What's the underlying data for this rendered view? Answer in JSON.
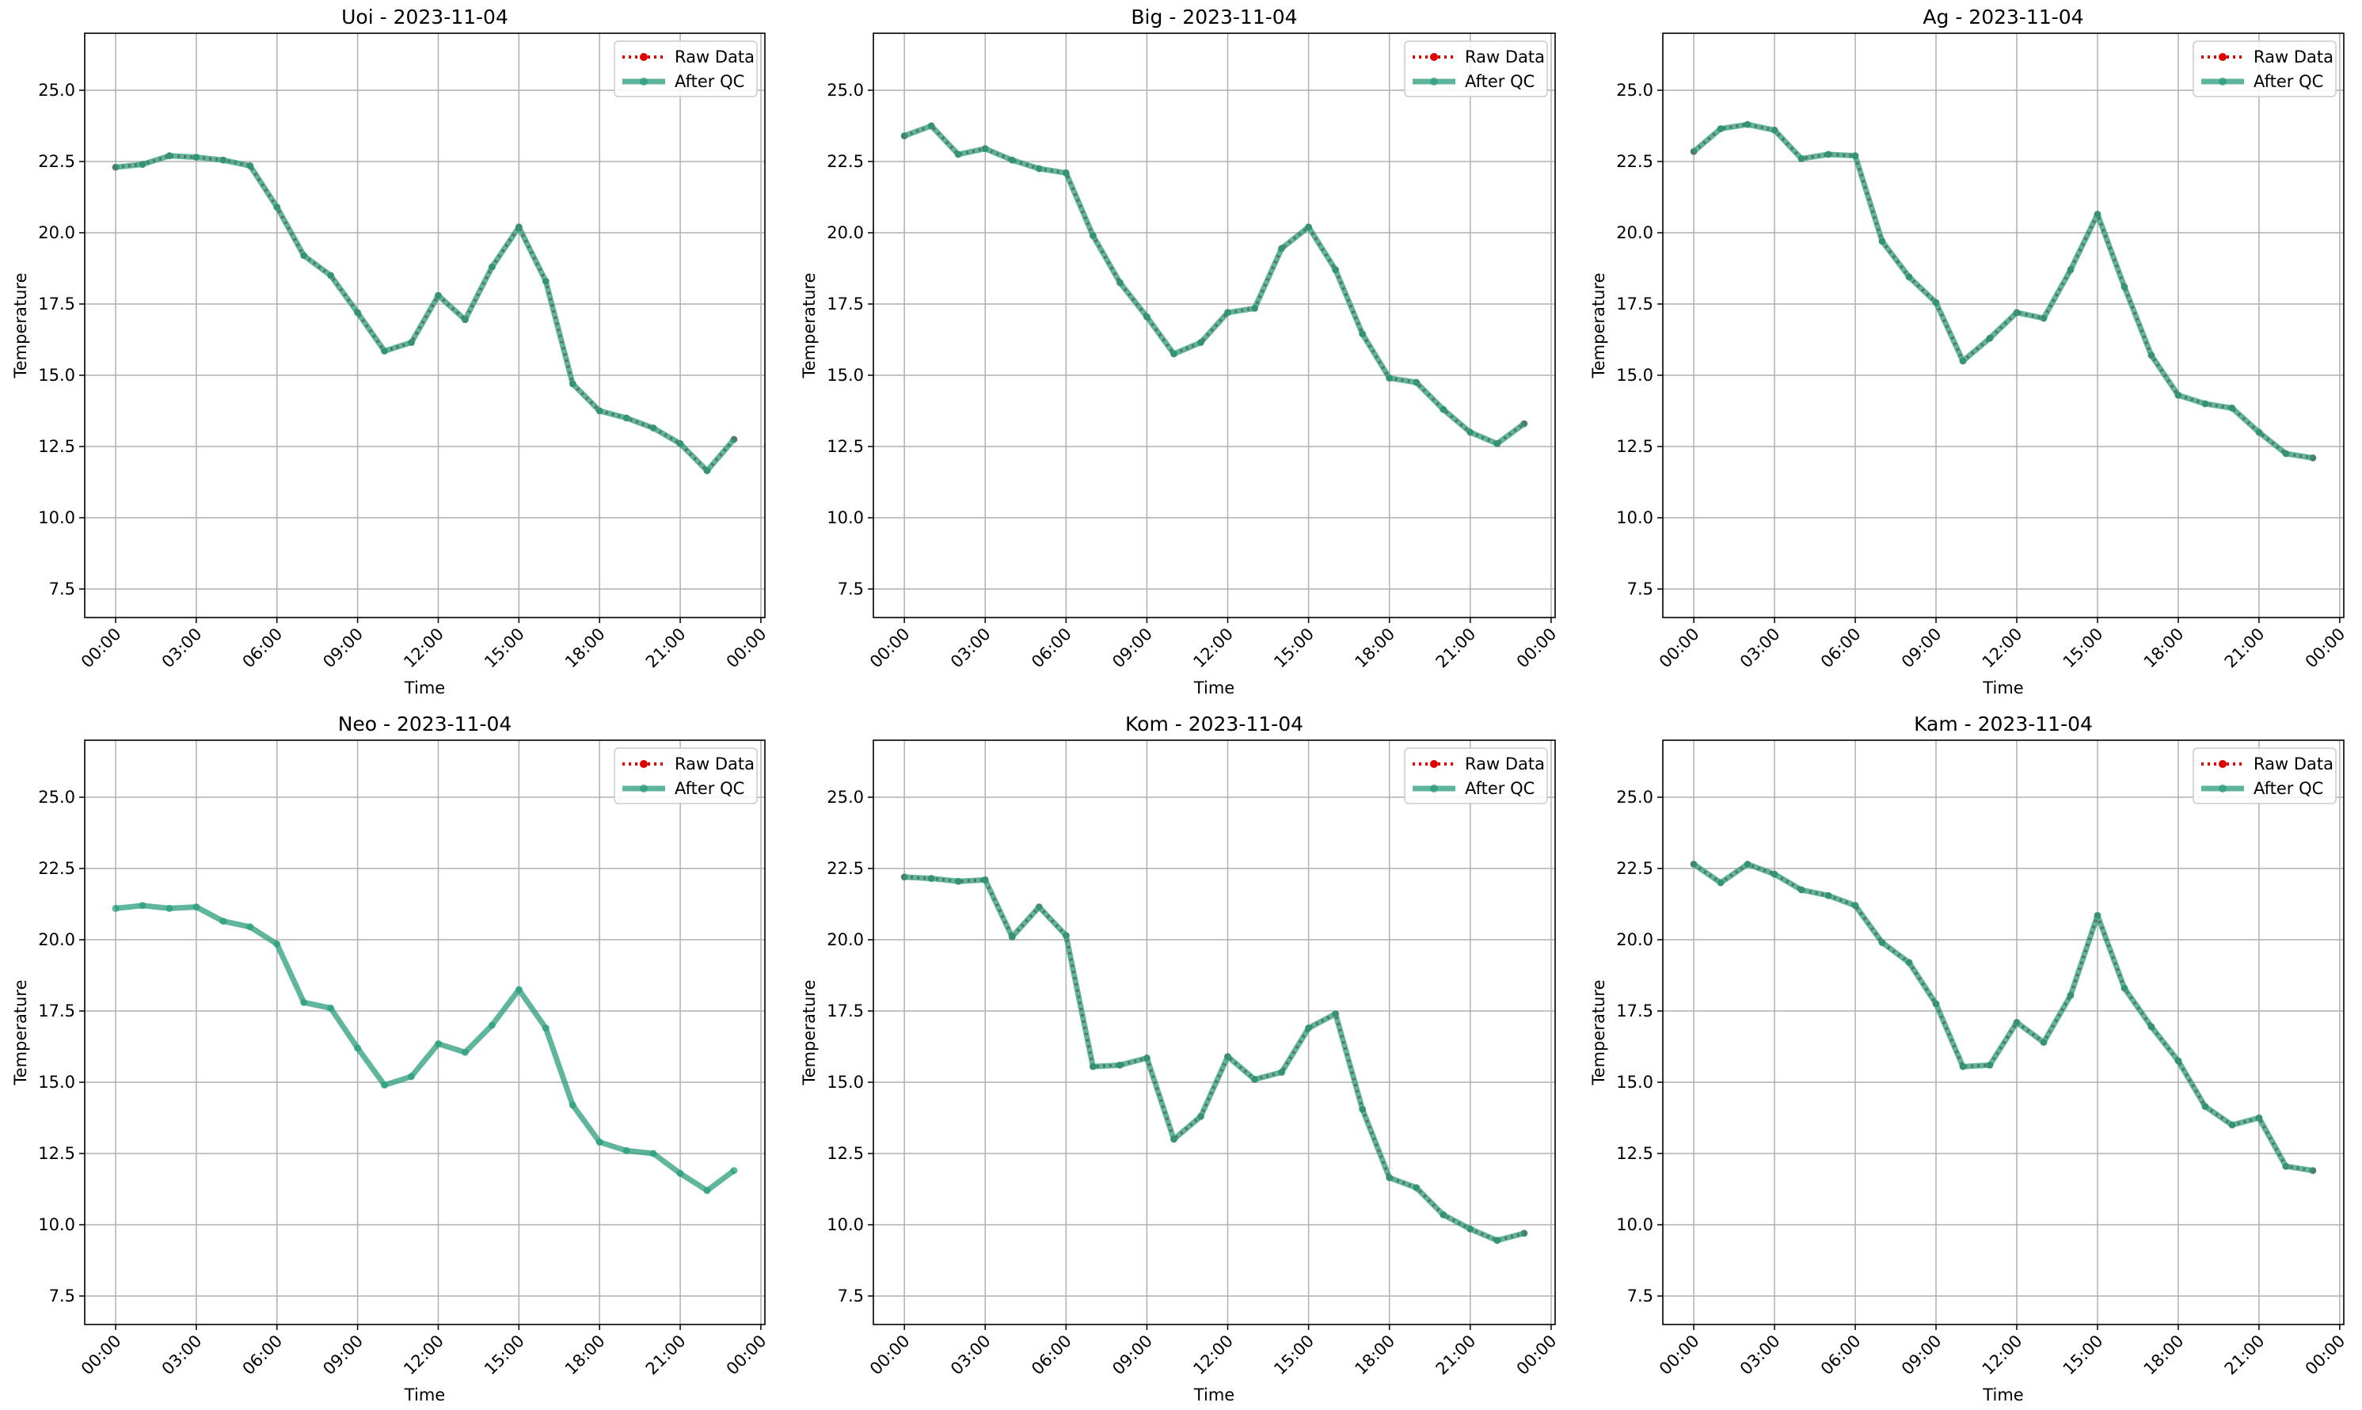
{
  "chart_data": [
    {
      "type": "line",
      "title": "Uoi - 2023-11-04",
      "xlabel": "Time",
      "ylabel": "Temperature",
      "x": [
        0,
        1,
        2,
        3,
        4,
        5,
        6,
        7,
        8,
        9,
        10,
        11,
        12,
        13,
        14,
        15,
        16,
        17,
        18,
        19,
        20,
        21,
        22,
        23
      ],
      "series": [
        {
          "name": "Raw Data",
          "color": "#e00000",
          "values": [
            22.3,
            22.4,
            22.7,
            22.65,
            22.55,
            22.35,
            20.9,
            19.2,
            18.5,
            17.2,
            15.85,
            16.15,
            17.8,
            16.95,
            18.8,
            20.2,
            18.3,
            14.7,
            13.75,
            13.5,
            13.15,
            12.6,
            11.65,
            12.75
          ]
        },
        {
          "name": "After QC",
          "color": "#2a9d7c",
          "values": [
            22.3,
            22.4,
            22.7,
            22.65,
            22.55,
            22.35,
            20.9,
            19.2,
            18.5,
            17.2,
            15.85,
            16.15,
            17.8,
            16.95,
            18.8,
            20.2,
            18.3,
            14.7,
            13.75,
            13.5,
            13.15,
            12.6,
            11.65,
            12.75
          ]
        }
      ],
      "xlim": [
        -1.15,
        24.15
      ],
      "xticks": [
        {
          "value": 0,
          "label": "00:00"
        },
        {
          "value": 3,
          "label": "03:00"
        },
        {
          "value": 6,
          "label": "06:00"
        },
        {
          "value": 9,
          "label": "09:00"
        },
        {
          "value": 12,
          "label": "12:00"
        },
        {
          "value": 15,
          "label": "15:00"
        },
        {
          "value": 18,
          "label": "18:00"
        },
        {
          "value": 21,
          "label": "21:00"
        },
        {
          "value": 24,
          "label": "00:00"
        }
      ],
      "ylim": [
        6.5,
        27
      ],
      "yticks": [
        7.5,
        {
          "value": 10,
          "label": "10.0"
        },
        12.5,
        {
          "value": 15,
          "label": "15.0"
        },
        17.5,
        {
          "value": 20,
          "label": "20.0"
        },
        22.5,
        {
          "value": 25,
          "label": "25.0"
        }
      ],
      "grid": true,
      "legend": "upper right"
    },
    {
      "type": "line",
      "title": "Big - 2023-11-04",
      "xlabel": "Time",
      "ylabel": "Temperature",
      "x": [
        0,
        1,
        2,
        3,
        4,
        5,
        6,
        7,
        8,
        9,
        10,
        11,
        12,
        13,
        14,
        15,
        16,
        17,
        18,
        19,
        20,
        21,
        22,
        23
      ],
      "series": [
        {
          "name": "Raw Data",
          "color": "#e00000",
          "values": [
            23.4,
            23.75,
            22.75,
            22.95,
            22.55,
            22.25,
            22.1,
            19.9,
            18.25,
            17.05,
            15.75,
            16.15,
            17.2,
            17.35,
            19.45,
            20.2,
            18.7,
            16.45,
            14.9,
            14.75,
            13.8,
            13.0,
            12.6,
            13.3
          ]
        },
        {
          "name": "After QC",
          "color": "#2a9d7c",
          "values": [
            23.4,
            23.75,
            22.75,
            22.95,
            22.55,
            22.25,
            22.1,
            19.9,
            18.25,
            17.05,
            15.75,
            16.15,
            17.2,
            17.35,
            19.45,
            20.2,
            18.7,
            16.45,
            14.9,
            14.75,
            13.8,
            13.0,
            12.6,
            13.3
          ]
        }
      ],
      "xlim": [
        -1.15,
        24.15
      ],
      "xticks": [
        {
          "value": 0,
          "label": "00:00"
        },
        {
          "value": 3,
          "label": "03:00"
        },
        {
          "value": 6,
          "label": "06:00"
        },
        {
          "value": 9,
          "label": "09:00"
        },
        {
          "value": 12,
          "label": "12:00"
        },
        {
          "value": 15,
          "label": "15:00"
        },
        {
          "value": 18,
          "label": "18:00"
        },
        {
          "value": 21,
          "label": "21:00"
        },
        {
          "value": 24,
          "label": "00:00"
        }
      ],
      "ylim": [
        6.5,
        27
      ],
      "yticks": [
        7.5,
        {
          "value": 10,
          "label": "10.0"
        },
        12.5,
        {
          "value": 15,
          "label": "15.0"
        },
        17.5,
        {
          "value": 20,
          "label": "20.0"
        },
        22.5,
        {
          "value": 25,
          "label": "25.0"
        }
      ],
      "grid": true,
      "legend": "upper right"
    },
    {
      "type": "line",
      "title": "Ag - 2023-11-04",
      "xlabel": "Time",
      "ylabel": "Temperature",
      "x": [
        0,
        1,
        2,
        3,
        4,
        5,
        6,
        7,
        8,
        9,
        10,
        11,
        12,
        13,
        14,
        15,
        16,
        17,
        18,
        19,
        20,
        21,
        22,
        23
      ],
      "series": [
        {
          "name": "Raw Data",
          "color": "#e00000",
          "values": [
            22.85,
            23.65,
            23.8,
            23.6,
            22.6,
            22.75,
            22.7,
            19.7,
            18.45,
            17.55,
            15.5,
            16.3,
            17.2,
            17.0,
            18.7,
            20.65,
            18.1,
            15.7,
            14.3,
            14.0,
            13.85,
            13.0,
            12.25,
            12.1
          ]
        },
        {
          "name": "After QC",
          "color": "#2a9d7c",
          "values": [
            22.85,
            23.65,
            23.8,
            23.6,
            22.6,
            22.75,
            22.7,
            19.7,
            18.45,
            17.55,
            15.5,
            16.3,
            17.2,
            17.0,
            18.7,
            20.65,
            18.1,
            15.7,
            14.3,
            14.0,
            13.85,
            13.0,
            12.25,
            12.1
          ]
        }
      ],
      "xlim": [
        -1.15,
        24.15
      ],
      "xticks": [
        {
          "value": 0,
          "label": "00:00"
        },
        {
          "value": 3,
          "label": "03:00"
        },
        {
          "value": 6,
          "label": "06:00"
        },
        {
          "value": 9,
          "label": "09:00"
        },
        {
          "value": 12,
          "label": "12:00"
        },
        {
          "value": 15,
          "label": "15:00"
        },
        {
          "value": 18,
          "label": "18:00"
        },
        {
          "value": 21,
          "label": "21:00"
        },
        {
          "value": 24,
          "label": "00:00"
        }
      ],
      "ylim": [
        6.5,
        27
      ],
      "yticks": [
        7.5,
        {
          "value": 10,
          "label": "10.0"
        },
        12.5,
        {
          "value": 15,
          "label": "15.0"
        },
        17.5,
        {
          "value": 20,
          "label": "20.0"
        },
        22.5,
        {
          "value": 25,
          "label": "25.0"
        }
      ],
      "grid": true,
      "legend": "upper right"
    },
    {
      "type": "line",
      "title": "Neo - 2023-11-04",
      "xlabel": "Time",
      "ylabel": "Temperature",
      "x": [
        0,
        1,
        2,
        3,
        4,
        5,
        6,
        7,
        8,
        9,
        10,
        11,
        12,
        13,
        14,
        15,
        16,
        17,
        18,
        19,
        20,
        21,
        22,
        23
      ],
      "series": [
        {
          "name": "Raw Data",
          "color": "#e00000",
          "values": [
            null,
            null,
            null,
            null,
            null,
            null,
            null,
            null,
            null,
            null,
            null,
            null,
            null,
            null,
            null,
            null,
            null,
            null,
            null,
            null,
            null,
            null,
            null,
            null
          ]
        },
        {
          "name": "After QC",
          "color": "#2a9d7c",
          "values": [
            21.1,
            21.2,
            21.1,
            21.15,
            20.65,
            20.45,
            19.85,
            17.8,
            17.6,
            16.2,
            14.9,
            15.2,
            16.35,
            16.05,
            17.0,
            18.25,
            16.9,
            14.2,
            12.9,
            12.6,
            12.5,
            11.8,
            11.2,
            11.9
          ]
        }
      ],
      "xlim": [
        -1.15,
        24.15
      ],
      "xticks": [
        {
          "value": 0,
          "label": "00:00"
        },
        {
          "value": 3,
          "label": "03:00"
        },
        {
          "value": 6,
          "label": "06:00"
        },
        {
          "value": 9,
          "label": "09:00"
        },
        {
          "value": 12,
          "label": "12:00"
        },
        {
          "value": 15,
          "label": "15:00"
        },
        {
          "value": 18,
          "label": "18:00"
        },
        {
          "value": 21,
          "label": "21:00"
        },
        {
          "value": 24,
          "label": "00:00"
        }
      ],
      "ylim": [
        6.5,
        27
      ],
      "yticks": [
        7.5,
        {
          "value": 10,
          "label": "10.0"
        },
        12.5,
        {
          "value": 15,
          "label": "15.0"
        },
        17.5,
        {
          "value": 20,
          "label": "20.0"
        },
        22.5,
        {
          "value": 25,
          "label": "25.0"
        }
      ],
      "grid": true,
      "legend": "upper right"
    },
    {
      "type": "line",
      "title": "Kom - 2023-11-04",
      "xlabel": "Time",
      "ylabel": "Temperature",
      "x": [
        0,
        1,
        2,
        3,
        4,
        5,
        6,
        7,
        8,
        9,
        10,
        11,
        12,
        13,
        14,
        15,
        16,
        17,
        18,
        19,
        20,
        21,
        22,
        23
      ],
      "series": [
        {
          "name": "Raw Data",
          "color": "#e00000",
          "values": [
            22.2,
            22.15,
            22.05,
            22.1,
            20.1,
            21.15,
            20.15,
            15.55,
            15.6,
            15.85,
            13.0,
            13.8,
            15.9,
            15.1,
            15.35,
            16.9,
            17.4,
            14.05,
            11.65,
            11.3,
            10.35,
            9.85,
            9.45,
            9.7
          ]
        },
        {
          "name": "After QC",
          "color": "#2a9d7c",
          "values": [
            22.2,
            22.15,
            22.05,
            22.1,
            20.1,
            21.15,
            20.15,
            15.55,
            15.6,
            15.85,
            13.0,
            13.8,
            15.9,
            15.1,
            15.35,
            16.9,
            17.4,
            14.05,
            11.65,
            11.3,
            10.35,
            9.85,
            9.45,
            9.7
          ]
        }
      ],
      "xlim": [
        -1.15,
        24.15
      ],
      "xticks": [
        {
          "value": 0,
          "label": "00:00"
        },
        {
          "value": 3,
          "label": "03:00"
        },
        {
          "value": 6,
          "label": "06:00"
        },
        {
          "value": 9,
          "label": "09:00"
        },
        {
          "value": 12,
          "label": "12:00"
        },
        {
          "value": 15,
          "label": "15:00"
        },
        {
          "value": 18,
          "label": "18:00"
        },
        {
          "value": 21,
          "label": "21:00"
        },
        {
          "value": 24,
          "label": "00:00"
        }
      ],
      "ylim": [
        6.5,
        27
      ],
      "yticks": [
        7.5,
        {
          "value": 10,
          "label": "10.0"
        },
        12.5,
        {
          "value": 15,
          "label": "15.0"
        },
        17.5,
        {
          "value": 20,
          "label": "20.0"
        },
        22.5,
        {
          "value": 25,
          "label": "25.0"
        }
      ],
      "grid": true,
      "legend": "upper right"
    },
    {
      "type": "line",
      "title": "Kam - 2023-11-04",
      "xlabel": "Time",
      "ylabel": "Temperature",
      "x": [
        0,
        1,
        2,
        3,
        4,
        5,
        6,
        7,
        8,
        9,
        10,
        11,
        12,
        13,
        14,
        15,
        16,
        17,
        18,
        19,
        20,
        21,
        22,
        23
      ],
      "series": [
        {
          "name": "Raw Data",
          "color": "#e00000",
          "values": [
            22.65,
            22.0,
            22.65,
            22.3,
            21.75,
            21.55,
            21.2,
            19.9,
            19.2,
            17.75,
            15.55,
            15.6,
            17.1,
            16.4,
            18.05,
            20.85,
            18.3,
            16.95,
            15.75,
            14.15,
            13.5,
            13.75,
            12.05,
            11.9
          ]
        },
        {
          "name": "After QC",
          "color": "#2a9d7c",
          "values": [
            22.65,
            22.0,
            22.65,
            22.3,
            21.75,
            21.55,
            21.2,
            19.9,
            19.2,
            17.75,
            15.55,
            15.6,
            17.1,
            16.4,
            18.05,
            20.85,
            18.3,
            16.95,
            15.75,
            14.15,
            13.5,
            13.75,
            12.05,
            11.9
          ]
        }
      ],
      "xlim": [
        -1.15,
        24.15
      ],
      "xticks": [
        {
          "value": 0,
          "label": "00:00"
        },
        {
          "value": 3,
          "label": "03:00"
        },
        {
          "value": 6,
          "label": "06:00"
        },
        {
          "value": 9,
          "label": "09:00"
        },
        {
          "value": 12,
          "label": "12:00"
        },
        {
          "value": 15,
          "label": "15:00"
        },
        {
          "value": 18,
          "label": "18:00"
        },
        {
          "value": 21,
          "label": "21:00"
        },
        {
          "value": 24,
          "label": "00:00"
        }
      ],
      "ylim": [
        6.5,
        27
      ],
      "yticks": [
        7.5,
        {
          "value": 10,
          "label": "10.0"
        },
        12.5,
        {
          "value": 15,
          "label": "15.0"
        },
        17.5,
        {
          "value": 20,
          "label": "20.0"
        },
        22.5,
        {
          "value": 25,
          "label": "25.0"
        }
      ],
      "grid": true,
      "legend": "upper right"
    }
  ]
}
